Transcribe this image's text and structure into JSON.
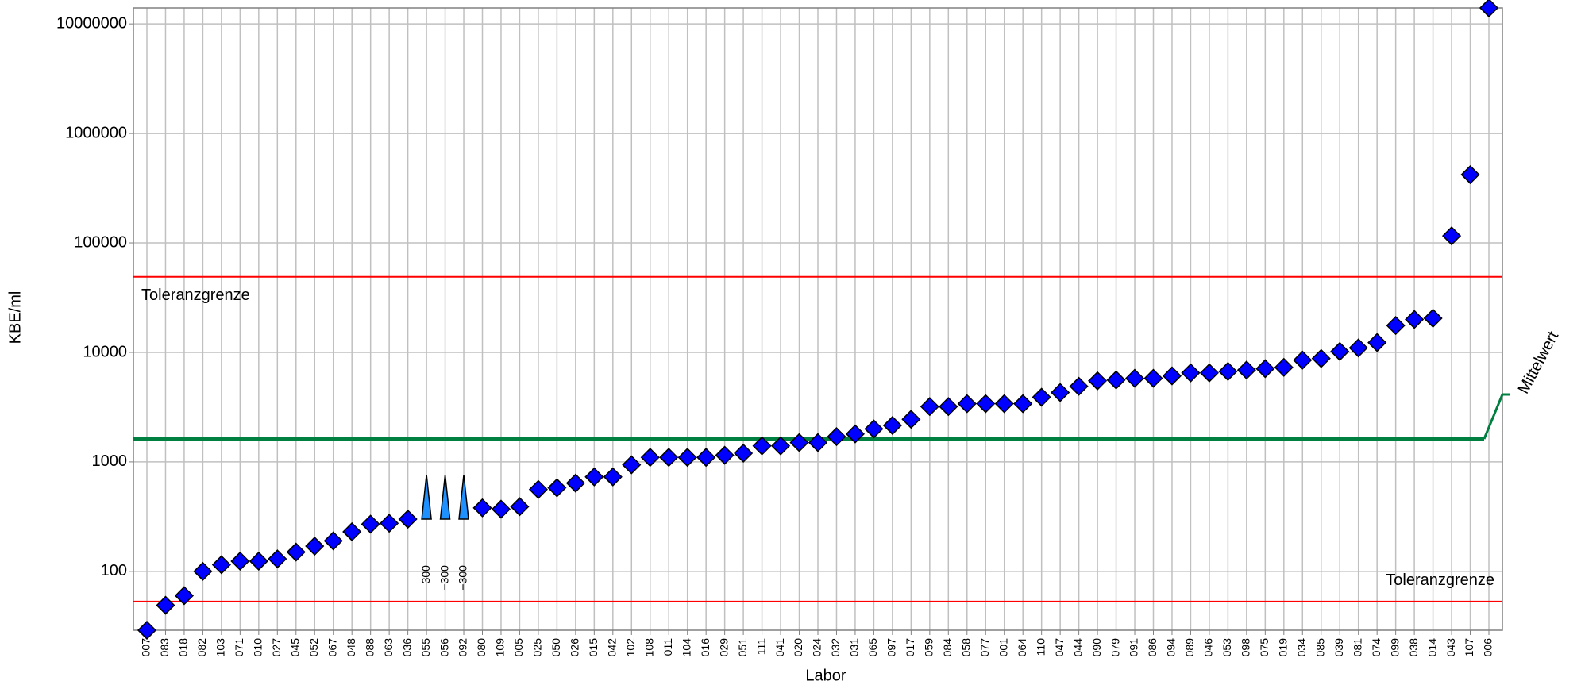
{
  "chart_data": {
    "type": "scatter",
    "x_label": "Labor",
    "y_label": "KBE/ml",
    "log_y": true,
    "grid": true,
    "color": "#0000ff",
    "categories": [
      "007",
      "083",
      "018",
      "082",
      "103",
      "071",
      "010",
      "027",
      "045",
      "052",
      "067",
      "048",
      "088",
      "063",
      "036",
      "055",
      "056",
      "092",
      "080",
      "109",
      "005",
      "025",
      "050",
      "026",
      "015",
      "042",
      "102",
      "108",
      "011",
      "104",
      "016",
      "029",
      "051",
      "111",
      "041",
      "020",
      "024",
      "032",
      "031",
      "065",
      "097",
      "017",
      "059",
      "084",
      "058",
      "077",
      "001",
      "064",
      "110",
      "047",
      "044",
      "090",
      "079",
      "091",
      "086",
      "094",
      "089",
      "046",
      "053",
      "098",
      "075",
      "019",
      "034",
      "085",
      "039",
      "081",
      "074",
      "099",
      "038",
      "014",
      "043",
      "107",
      "006"
    ],
    "values": [
      29,
      49,
      60,
      100,
      115,
      124,
      124,
      130,
      150,
      170,
      190,
      230,
      270,
      275,
      300,
      null,
      null,
      null,
      380,
      370,
      390,
      560,
      580,
      640,
      730,
      730,
      940,
      1100,
      1100,
      1100,
      1100,
      1150,
      1200,
      1400,
      1400,
      1500,
      1500,
      1700,
      1800,
      2000,
      2150,
      2450,
      3200,
      3200,
      3400,
      3400,
      3400,
      3400,
      3900,
      4300,
      4900,
      5500,
      5600,
      5800,
      5800,
      6100,
      6500,
      6500,
      6700,
      6900,
      7100,
      7300,
      8500,
      8800,
      10200,
      11000,
      12300,
      17600,
      20000,
      20500,
      116000,
      420000,
      14000000
    ],
    "lower_bound_color": "#1e90ff",
    "lower_bound_values": [
      null,
      null,
      null,
      null,
      null,
      null,
      null,
      null,
      null,
      null,
      null,
      null,
      null,
      null,
      null,
      300,
      300,
      300,
      null,
      null,
      null,
      null,
      null,
      null,
      null,
      null,
      null,
      null,
      null,
      null,
      null,
      null,
      null,
      null,
      null,
      null,
      null,
      null,
      null,
      null,
      null,
      null,
      null,
      null,
      null,
      null,
      null,
      null,
      null,
      null,
      null,
      null,
      null,
      null,
      null,
      null,
      null,
      null,
      null,
      null,
      null,
      null,
      null,
      null,
      null,
      null,
      null,
      null,
      null,
      null,
      null,
      null,
      null
    ],
    "lower_bound_labels": [
      null,
      null,
      null,
      null,
      null,
      null,
      null,
      null,
      null,
      null,
      null,
      null,
      null,
      null,
      null,
      "+300",
      "+300",
      "+300",
      null,
      null,
      null,
      null,
      null,
      null,
      null,
      null,
      null,
      null,
      null,
      null,
      null,
      null,
      null,
      null,
      null,
      null,
      null,
      null,
      null,
      null,
      null,
      null,
      null,
      null,
      null,
      null,
      null,
      null,
      null,
      null,
      null,
      null,
      null,
      null,
      null,
      null,
      null,
      null,
      null,
      null,
      null,
      null,
      null,
      null,
      null,
      null,
      null,
      null,
      null,
      null,
      null,
      null,
      null
    ],
    "reference_lines": [
      {
        "label": "Toleranzgrenze",
        "value": 49000,
        "color": "#ff0000"
      },
      {
        "label": "Toleranzgrenze",
        "value": 53,
        "color": "#ff0000"
      },
      {
        "label": "Mittelwert",
        "value": 1620,
        "color": "#008040"
      }
    ],
    "ylim": [
      29,
      14000000
    ],
    "yticks": [
      100,
      1000,
      10000,
      100000,
      1000000,
      10000000
    ]
  }
}
